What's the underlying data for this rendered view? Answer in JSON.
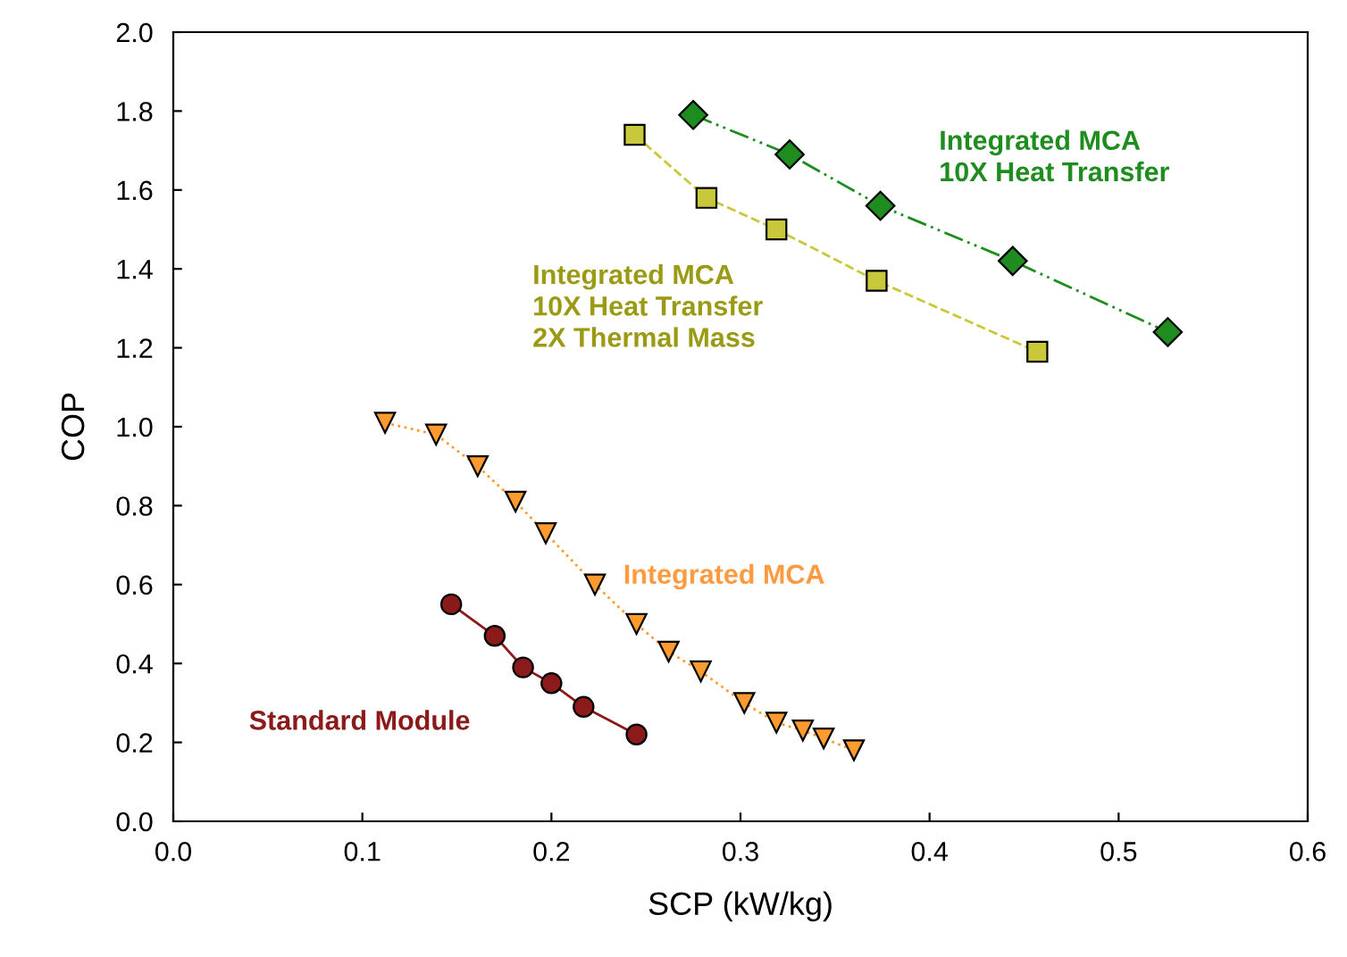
{
  "chart_data": {
    "type": "line",
    "xlabel": "SCP (kW/kg)",
    "ylabel": "COP",
    "xlim": [
      0.0,
      0.6
    ],
    "ylim": [
      0.0,
      2.0
    ],
    "xticks": [
      {
        "value": 0.0,
        "label": "0.0"
      },
      {
        "value": 0.1,
        "label": "0.1"
      },
      {
        "value": 0.2,
        "label": "0.2"
      },
      {
        "value": 0.3,
        "label": "0.3"
      },
      {
        "value": 0.4,
        "label": "0.4"
      },
      {
        "value": 0.5,
        "label": "0.5"
      },
      {
        "value": 0.6,
        "label": "0.6"
      }
    ],
    "yticks": [
      {
        "value": 0.0,
        "label": "0.0"
      },
      {
        "value": 0.2,
        "label": "0.2"
      },
      {
        "value": 0.4,
        "label": "0.4"
      },
      {
        "value": 0.6,
        "label": "0.6"
      },
      {
        "value": 0.8,
        "label": "0.8"
      },
      {
        "value": 1.0,
        "label": "1.0"
      },
      {
        "value": 1.2,
        "label": "1.2"
      },
      {
        "value": 1.4,
        "label": "1.4"
      },
      {
        "value": 1.6,
        "label": "1.6"
      },
      {
        "value": 1.8,
        "label": "1.8"
      },
      {
        "value": 2.0,
        "label": "2.0"
      }
    ],
    "grid": false,
    "legend": false,
    "series": [
      {
        "name": "Integrated MCA\n10X Heat Transfer",
        "color": "#1e8c1e",
        "marker": "diamond",
        "line_style": "dashdot",
        "x": [
          0.275,
          0.326,
          0.374,
          0.444,
          0.526
        ],
        "values": [
          1.79,
          1.69,
          1.56,
          1.42,
          1.24
        ]
      },
      {
        "name": "Integrated MCA\n10X Heat Transfer\n2X Thermal Mass",
        "color": "#c8c83a",
        "marker": "square",
        "line_style": "dashed",
        "x": [
          0.244,
          0.282,
          0.319,
          0.372,
          0.457
        ],
        "values": [
          1.74,
          1.58,
          1.5,
          1.37,
          1.19
        ]
      },
      {
        "name": "Integrated MCA",
        "color": "#ff9a2e",
        "marker": "triangle",
        "line_style": "dotted",
        "x": [
          0.112,
          0.139,
          0.161,
          0.181,
          0.197,
          0.223,
          0.245,
          0.262,
          0.279,
          0.302,
          0.319,
          0.333,
          0.344,
          0.36
        ],
        "values": [
          1.01,
          0.98,
          0.9,
          0.81,
          0.73,
          0.6,
          0.5,
          0.43,
          0.38,
          0.3,
          0.25,
          0.23,
          0.21,
          0.18
        ]
      },
      {
        "name": "Standard Module",
        "color": "#8b1a1a",
        "marker": "circle",
        "line_style": "solid",
        "x": [
          0.147,
          0.17,
          0.185,
          0.2,
          0.217,
          0.245
        ],
        "values": [
          0.55,
          0.47,
          0.39,
          0.35,
          0.29,
          0.22
        ]
      }
    ]
  }
}
